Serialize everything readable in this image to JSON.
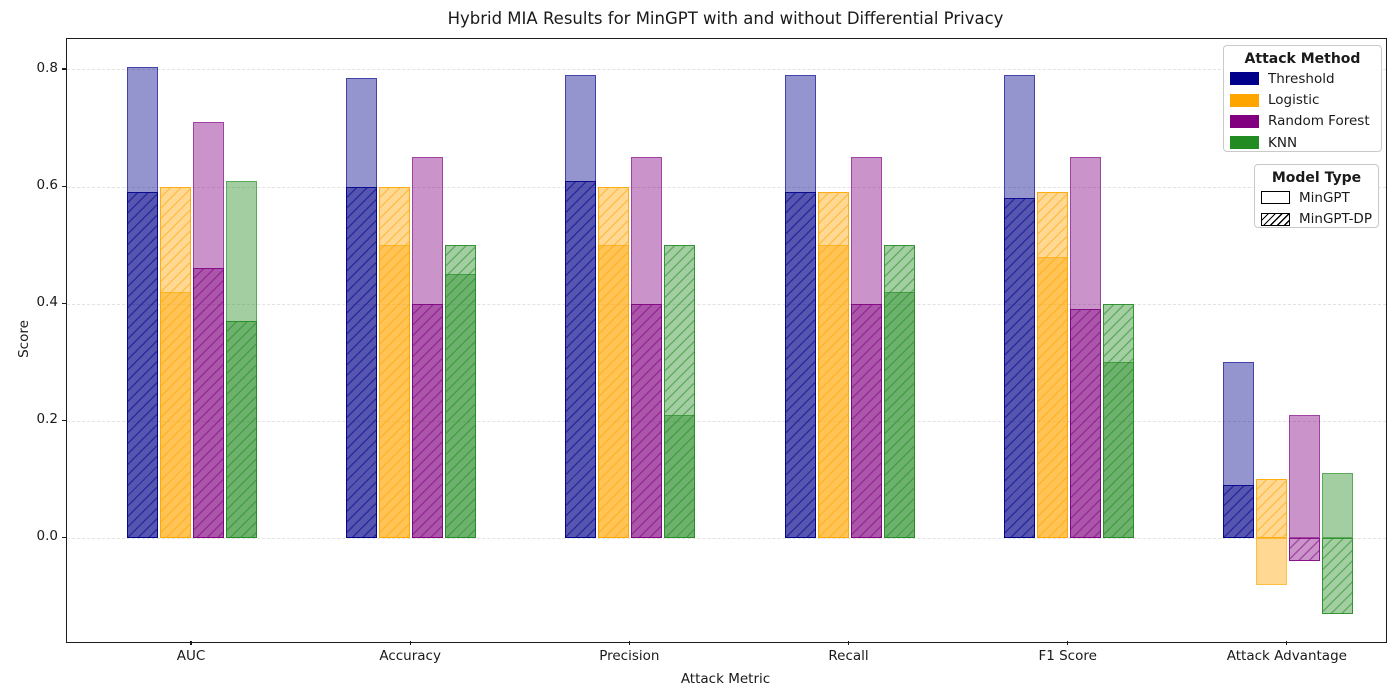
{
  "chart_data": {
    "type": "bar",
    "title": "Hybrid MIA Results for MinGPT with and without Differential Privacy",
    "xlabel": "Attack Metric",
    "ylabel": "Score",
    "categories": [
      "AUC",
      "Accuracy",
      "Precision",
      "Recall",
      "F1 Score",
      "Attack Advantage"
    ],
    "yticks": [
      0.0,
      0.2,
      0.4,
      0.6,
      0.8
    ],
    "ylim": [
      -0.178,
      0.852
    ],
    "grid": {
      "axis": "y",
      "style": "dashed",
      "color": "#e2e2e2"
    },
    "legend_attack": {
      "title": "Attack Method",
      "position": "upper-right"
    },
    "legend_model": {
      "title": "Model Type",
      "items": [
        {
          "label": "MinGPT",
          "style": "solid"
        },
        {
          "label": "MinGPT-DP",
          "style": "hatched"
        }
      ]
    },
    "model_types": [
      "MinGPT",
      "MinGPT-DP"
    ],
    "series": [
      {
        "name": "Threshold",
        "color": "#00008B",
        "values": {
          "MinGPT": [
            0.805,
            0.785,
            0.79,
            0.79,
            0.79,
            0.3
          ],
          "MinGPT-DP": [
            0.59,
            0.6,
            0.61,
            0.59,
            0.58,
            0.09
          ]
        }
      },
      {
        "name": "Logistic",
        "color": "#FFA500",
        "values": {
          "MinGPT": [
            0.42,
            0.5,
            0.5,
            0.5,
            0.48,
            -0.08
          ],
          "MinGPT-DP": [
            0.6,
            0.6,
            0.6,
            0.59,
            0.59,
            0.1
          ]
        }
      },
      {
        "name": "Random Forest",
        "color": "#800080",
        "values": {
          "MinGPT": [
            0.71,
            0.65,
            0.65,
            0.65,
            0.65,
            0.21
          ],
          "MinGPT-DP": [
            0.46,
            0.4,
            0.4,
            0.4,
            0.39,
            -0.04
          ]
        }
      },
      {
        "name": "KNN",
        "color": "#228B22",
        "values": {
          "MinGPT": [
            0.61,
            0.45,
            0.21,
            0.42,
            0.3,
            0.11
          ],
          "MinGPT-DP": [
            0.37,
            0.5,
            0.5,
            0.5,
            0.4,
            -0.13
          ]
        }
      }
    ]
  }
}
